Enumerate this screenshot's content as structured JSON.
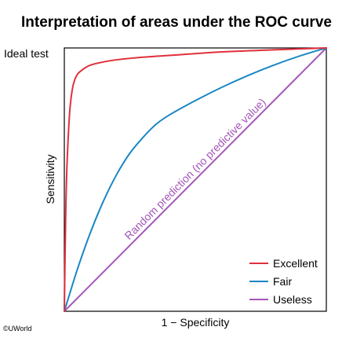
{
  "chart_data": {
    "type": "line",
    "title": "Interpretation of areas under the ROC curve",
    "xlabel": "1 − Specificity",
    "ylabel": "Sensitivity",
    "xlim": [
      0,
      1
    ],
    "ylim": [
      0,
      1
    ],
    "grid": false,
    "legend_position": "bottom-right",
    "annotations": {
      "ideal_test": "Ideal test",
      "diagonal": "Random prediction (no predictive value)"
    },
    "series": [
      {
        "name": "Excellent",
        "color": "#e0303c",
        "x": [
          0,
          0.005,
          0.01,
          0.02,
          0.03,
          0.04,
          0.05,
          0.06,
          0.08,
          0.1,
          0.14,
          0.2,
          0.3,
          0.45,
          0.6,
          0.8,
          1.0
        ],
        "y": [
          0,
          0.35,
          0.55,
          0.75,
          0.84,
          0.88,
          0.9,
          0.91,
          0.925,
          0.935,
          0.945,
          0.955,
          0.965,
          0.975,
          0.985,
          0.993,
          1.0
        ]
      },
      {
        "name": "Fair",
        "color": "#1a87c4",
        "x": [
          0,
          0.05,
          0.1,
          0.15,
          0.2,
          0.25,
          0.3,
          0.35,
          0.4,
          0.5,
          0.6,
          0.7,
          0.8,
          0.9,
          1.0
        ],
        "y": [
          0,
          0.16,
          0.3,
          0.42,
          0.52,
          0.6,
          0.66,
          0.71,
          0.745,
          0.8,
          0.85,
          0.895,
          0.935,
          0.97,
          1.0
        ]
      },
      {
        "name": "Useless",
        "color": "#a456b8",
        "x": [
          0,
          1
        ],
        "y": [
          0,
          1
        ]
      }
    ]
  },
  "copyright": "©UWorld",
  "colors": {
    "axis": "#000000",
    "excellent": "#e0303c",
    "fair": "#1a87c4",
    "useless": "#a456b8"
  }
}
